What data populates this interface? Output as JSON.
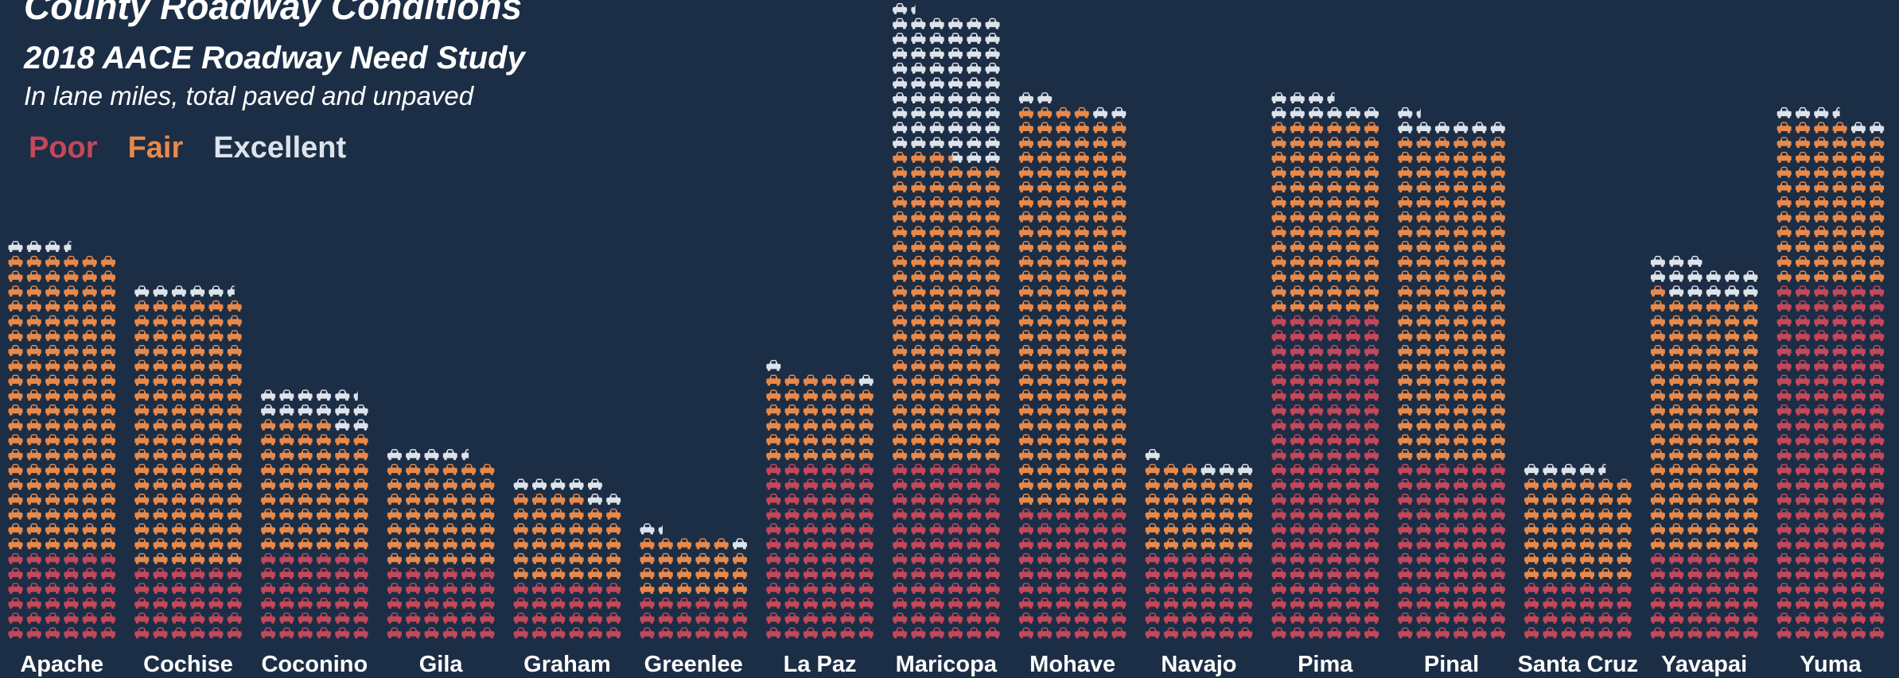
{
  "chart_data": {
    "type": "pictogram",
    "title": "County Roadway Conditions",
    "subtitle": "2018 AACE Roadway Need Study",
    "note": "In lane miles, total paved and unpaved",
    "categories": [
      "Apache",
      "Cochise",
      "Coconino",
      "Gila",
      "Graham",
      "Greenlee",
      "La Paz",
      "Maricopa",
      "Mohave",
      "Navajo",
      "Pima",
      "Pinal",
      "Santa Cruz",
      "Yavapai",
      "Yuma"
    ],
    "icons_per_row": 6,
    "series": [
      {
        "name": "Poor",
        "color": "#c4475a",
        "values": [
          36,
          30,
          36,
          30,
          24,
          18,
          72,
          72,
          54,
          36,
          132,
          72,
          24,
          36,
          144
        ]
      },
      {
        "name": "Fair",
        "color": "#e8894a",
        "values": [
          120,
          108,
          52,
          42,
          34,
          23,
          35,
          123.3,
          160,
          33,
          78,
          132,
          42,
          103,
          64
        ]
      },
      {
        "name": "Excellent",
        "color": "#dde3ea",
        "values": [
          3.5,
          5.5,
          13.3,
          4.5,
          7,
          2.3,
          2,
          58,
          4,
          4,
          9.5,
          7.3,
          4.5,
          14,
          5.5
        ]
      }
    ]
  }
}
